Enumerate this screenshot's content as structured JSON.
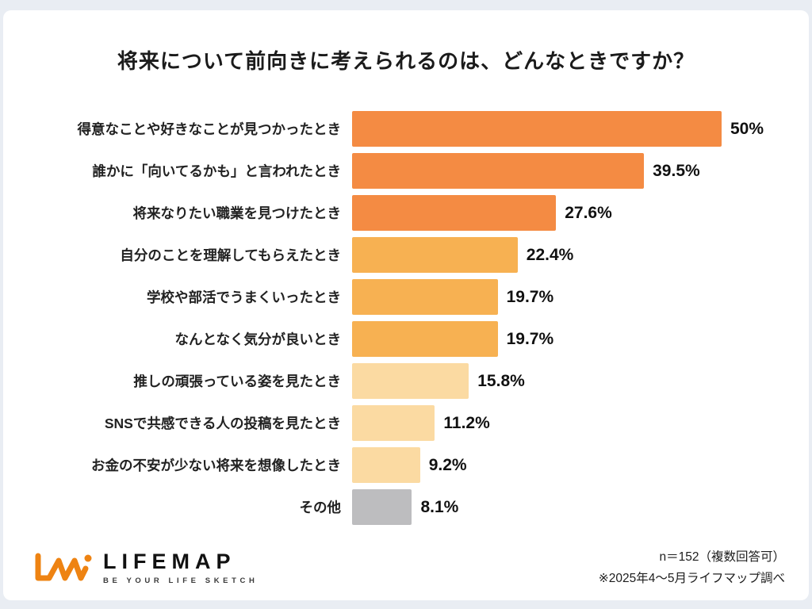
{
  "chart_data": {
    "type": "bar",
    "orientation": "horizontal",
    "title": "将来について前向きに考えられるのは、どんなときですか？",
    "xlim": [
      0,
      50
    ],
    "grid": false,
    "legend": "none",
    "categories": [
      "得意なことや好きなことが見つかったとき",
      "誰かに「向いてるかも」と言われたとき",
      "将来なりたい職業を見つけたとき",
      "自分のことを理解してもらえたとき",
      "学校や部活でうまくいったとき",
      "なんとなく気分が良いとき",
      "推しの頑張っている姿を見たとき",
      "SNSで共感できる人の投稿を見たとき",
      "お金の不安が少ない将来を想像したとき",
      "その他"
    ],
    "values": [
      50,
      39.5,
      27.6,
      22.4,
      19.7,
      19.7,
      15.8,
      11.2,
      9.2,
      8.1
    ],
    "value_labels": [
      "50%",
      "39.5%",
      "27.6%",
      "22.4%",
      "19.7%",
      "19.7%",
      "15.8%",
      "11.2%",
      "9.2%",
      "8.1%"
    ],
    "bar_colors": [
      "#F48B43",
      "#F48B43",
      "#F48B43",
      "#F7B152",
      "#F7B152",
      "#F7B152",
      "#FBDAA2",
      "#FBDAA2",
      "#FBDAA2",
      "#BDBDBF"
    ]
  },
  "footer": {
    "brand_name": "LIFEMAP",
    "brand_tagline": "BE YOUR LIFE SKETCH",
    "note_line1": "n＝152（複数回答可）",
    "note_line2": "※2025年4〜5月ライフマップ調べ"
  },
  "colors": {
    "logo_orange": "#EE8312",
    "background_frame": "#E9EDF3",
    "card_background": "#FFFFFF"
  }
}
